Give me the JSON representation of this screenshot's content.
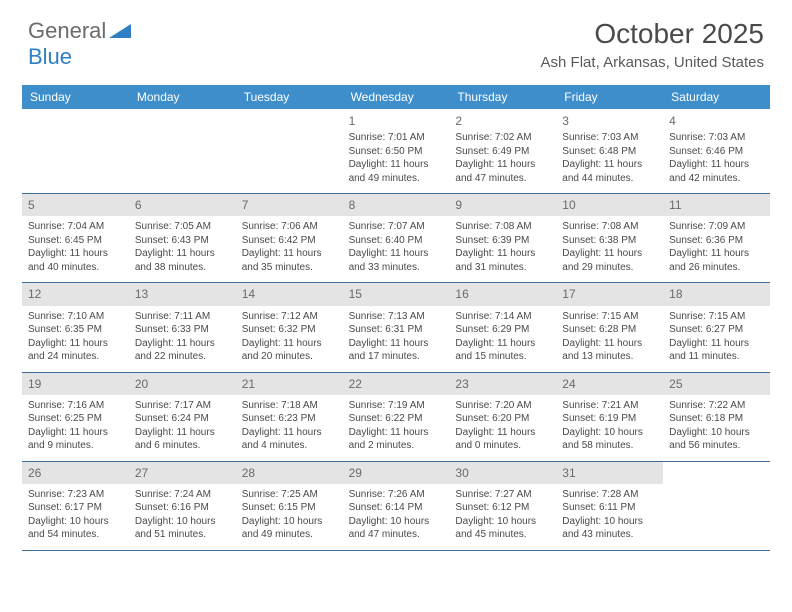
{
  "logo": {
    "text1": "General",
    "text2": "Blue"
  },
  "title": "October 2025",
  "location": "Ash Flat, Arkansas, United States",
  "day_names": [
    "Sunday",
    "Monday",
    "Tuesday",
    "Wednesday",
    "Thursday",
    "Friday",
    "Saturday"
  ],
  "colors": {
    "header_bg": "#3f8ecc",
    "header_text": "#ffffff",
    "band_bg": "#e4e4e4",
    "rule": "#3f6d9a",
    "body_text": "#4a4a4a"
  },
  "weeks": [
    {
      "banded": false,
      "days": [
        null,
        null,
        null,
        {
          "n": "1",
          "sr": "7:01 AM",
          "ss": "6:50 PM",
          "dl": "11 hours and 49 minutes."
        },
        {
          "n": "2",
          "sr": "7:02 AM",
          "ss": "6:49 PM",
          "dl": "11 hours and 47 minutes."
        },
        {
          "n": "3",
          "sr": "7:03 AM",
          "ss": "6:48 PM",
          "dl": "11 hours and 44 minutes."
        },
        {
          "n": "4",
          "sr": "7:03 AM",
          "ss": "6:46 PM",
          "dl": "11 hours and 42 minutes."
        }
      ]
    },
    {
      "banded": true,
      "days": [
        {
          "n": "5",
          "sr": "7:04 AM",
          "ss": "6:45 PM",
          "dl": "11 hours and 40 minutes."
        },
        {
          "n": "6",
          "sr": "7:05 AM",
          "ss": "6:43 PM",
          "dl": "11 hours and 38 minutes."
        },
        {
          "n": "7",
          "sr": "7:06 AM",
          "ss": "6:42 PM",
          "dl": "11 hours and 35 minutes."
        },
        {
          "n": "8",
          "sr": "7:07 AM",
          "ss": "6:40 PM",
          "dl": "11 hours and 33 minutes."
        },
        {
          "n": "9",
          "sr": "7:08 AM",
          "ss": "6:39 PM",
          "dl": "11 hours and 31 minutes."
        },
        {
          "n": "10",
          "sr": "7:08 AM",
          "ss": "6:38 PM",
          "dl": "11 hours and 29 minutes."
        },
        {
          "n": "11",
          "sr": "7:09 AM",
          "ss": "6:36 PM",
          "dl": "11 hours and 26 minutes."
        }
      ]
    },
    {
      "banded": true,
      "days": [
        {
          "n": "12",
          "sr": "7:10 AM",
          "ss": "6:35 PM",
          "dl": "11 hours and 24 minutes."
        },
        {
          "n": "13",
          "sr": "7:11 AM",
          "ss": "6:33 PM",
          "dl": "11 hours and 22 minutes."
        },
        {
          "n": "14",
          "sr": "7:12 AM",
          "ss": "6:32 PM",
          "dl": "11 hours and 20 minutes."
        },
        {
          "n": "15",
          "sr": "7:13 AM",
          "ss": "6:31 PM",
          "dl": "11 hours and 17 minutes."
        },
        {
          "n": "16",
          "sr": "7:14 AM",
          "ss": "6:29 PM",
          "dl": "11 hours and 15 minutes."
        },
        {
          "n": "17",
          "sr": "7:15 AM",
          "ss": "6:28 PM",
          "dl": "11 hours and 13 minutes."
        },
        {
          "n": "18",
          "sr": "7:15 AM",
          "ss": "6:27 PM",
          "dl": "11 hours and 11 minutes."
        }
      ]
    },
    {
      "banded": true,
      "days": [
        {
          "n": "19",
          "sr": "7:16 AM",
          "ss": "6:25 PM",
          "dl": "11 hours and 9 minutes."
        },
        {
          "n": "20",
          "sr": "7:17 AM",
          "ss": "6:24 PM",
          "dl": "11 hours and 6 minutes."
        },
        {
          "n": "21",
          "sr": "7:18 AM",
          "ss": "6:23 PM",
          "dl": "11 hours and 4 minutes."
        },
        {
          "n": "22",
          "sr": "7:19 AM",
          "ss": "6:22 PM",
          "dl": "11 hours and 2 minutes."
        },
        {
          "n": "23",
          "sr": "7:20 AM",
          "ss": "6:20 PM",
          "dl": "11 hours and 0 minutes."
        },
        {
          "n": "24",
          "sr": "7:21 AM",
          "ss": "6:19 PM",
          "dl": "10 hours and 58 minutes."
        },
        {
          "n": "25",
          "sr": "7:22 AM",
          "ss": "6:18 PM",
          "dl": "10 hours and 56 minutes."
        }
      ]
    },
    {
      "banded": true,
      "days": [
        {
          "n": "26",
          "sr": "7:23 AM",
          "ss": "6:17 PM",
          "dl": "10 hours and 54 minutes."
        },
        {
          "n": "27",
          "sr": "7:24 AM",
          "ss": "6:16 PM",
          "dl": "10 hours and 51 minutes."
        },
        {
          "n": "28",
          "sr": "7:25 AM",
          "ss": "6:15 PM",
          "dl": "10 hours and 49 minutes."
        },
        {
          "n": "29",
          "sr": "7:26 AM",
          "ss": "6:14 PM",
          "dl": "10 hours and 47 minutes."
        },
        {
          "n": "30",
          "sr": "7:27 AM",
          "ss": "6:12 PM",
          "dl": "10 hours and 45 minutes."
        },
        {
          "n": "31",
          "sr": "7:28 AM",
          "ss": "6:11 PM",
          "dl": "10 hours and 43 minutes."
        },
        null
      ]
    }
  ],
  "labels": {
    "sunrise": "Sunrise: ",
    "sunset": "Sunset: ",
    "daylight": "Daylight: "
  }
}
